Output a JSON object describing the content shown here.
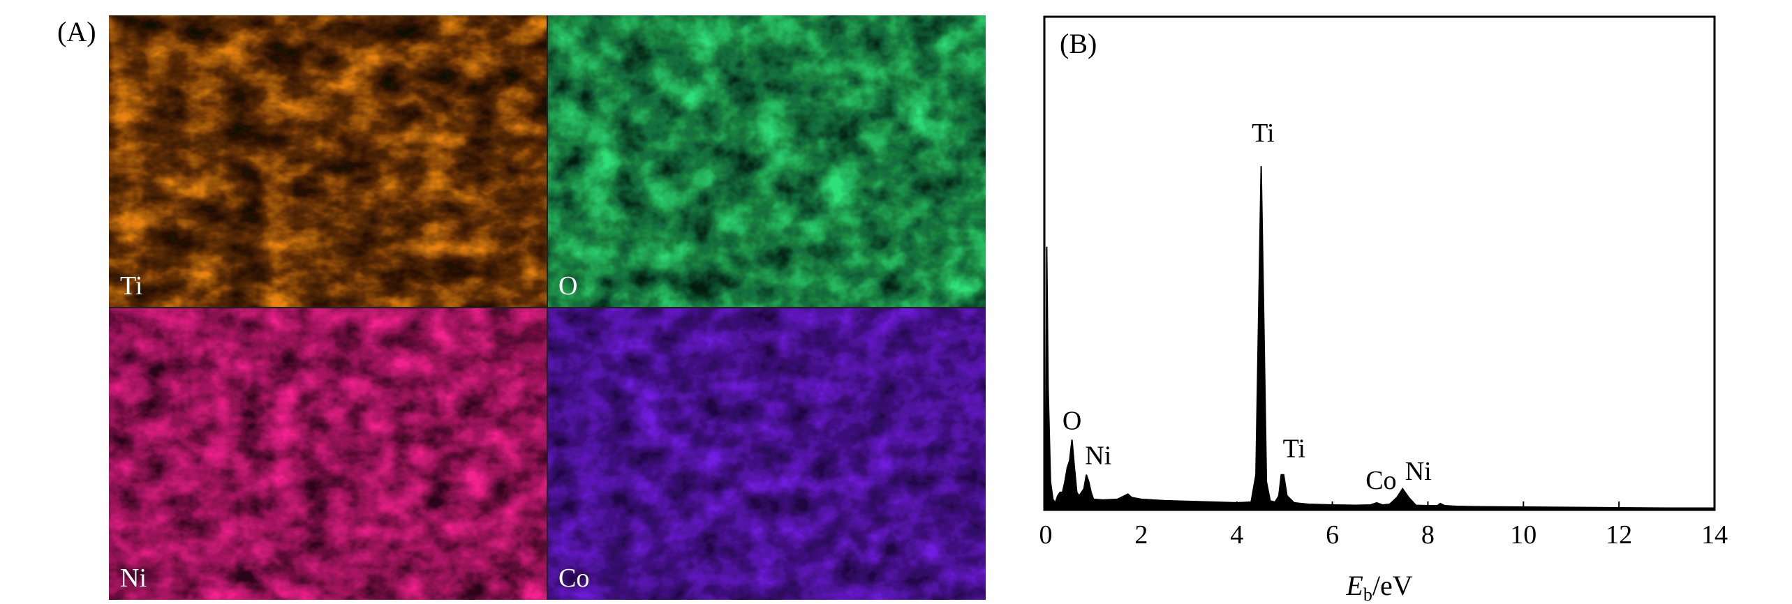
{
  "panel_a": {
    "label": "(A)",
    "maps": [
      {
        "element": "Ti",
        "color": "#e8820e"
      },
      {
        "element": "O",
        "color": "#2fe078"
      },
      {
        "element": "Ni",
        "color": "#f0208c"
      },
      {
        "element": "Co",
        "color": "#7a1ef0"
      }
    ]
  },
  "chart_data": {
    "type": "line",
    "panel_label": "(B)",
    "title": "",
    "xlabel_main": "E",
    "xlabel_sub": "b",
    "xlabel_unit": "/eV",
    "ylabel": "",
    "xlim": [
      0,
      14
    ],
    "ylim": [
      0,
      1
    ],
    "x_ticks": [
      0,
      2,
      4,
      6,
      8,
      10,
      12,
      14
    ],
    "grid": false,
    "fill": "#000000",
    "series": [
      {
        "x": [
          0.0,
          0.02,
          0.05,
          0.1,
          0.15,
          0.2,
          0.25,
          0.3,
          0.35,
          0.4,
          0.45,
          0.5,
          0.55,
          0.6,
          0.65,
          0.7,
          0.75,
          0.8,
          0.85,
          0.9,
          0.95,
          1.0,
          1.2,
          1.5,
          1.65,
          1.72,
          1.8,
          2.0,
          2.5,
          3.0,
          3.5,
          4.0,
          4.3,
          4.4,
          4.45,
          4.51,
          4.57,
          4.62,
          4.7,
          4.8,
          4.88,
          4.93,
          4.98,
          5.05,
          5.2,
          5.5,
          6.0,
          6.5,
          6.8,
          6.93,
          7.05,
          7.2,
          7.35,
          7.47,
          7.6,
          7.75,
          8.0,
          8.2,
          8.26,
          8.35,
          8.6,
          9.0,
          10.0,
          11.0,
          12.0,
          13.0,
          14.0
        ],
        "y": [
          0.0,
          0.75,
          0.35,
          0.08,
          0.03,
          0.02,
          0.04,
          0.05,
          0.05,
          0.08,
          0.12,
          0.14,
          0.2,
          0.12,
          0.05,
          0.04,
          0.05,
          0.06,
          0.1,
          0.08,
          0.05,
          0.03,
          0.028,
          0.03,
          0.04,
          0.045,
          0.035,
          0.03,
          0.026,
          0.024,
          0.022,
          0.02,
          0.022,
          0.1,
          0.5,
          0.98,
          0.5,
          0.08,
          0.025,
          0.022,
          0.04,
          0.1,
          0.1,
          0.04,
          0.02,
          0.016,
          0.014,
          0.013,
          0.014,
          0.02,
          0.014,
          0.016,
          0.035,
          0.06,
          0.035,
          0.013,
          0.012,
          0.012,
          0.018,
          0.012,
          0.01,
          0.009,
          0.008,
          0.007,
          0.006,
          0.005,
          0.005
        ]
      }
    ],
    "annotations": [
      {
        "text": "Ti",
        "x": 4.55,
        "y": 1.05
      },
      {
        "text": "O",
        "x": 0.55,
        "y": 0.23
      },
      {
        "text": "Ni",
        "x": 1.1,
        "y": 0.13
      },
      {
        "text": "Ti",
        "x": 5.2,
        "y": 0.15
      },
      {
        "text": "Co",
        "x": 7.02,
        "y": 0.06
      },
      {
        "text": "Ni",
        "x": 7.8,
        "y": 0.085
      }
    ]
  }
}
